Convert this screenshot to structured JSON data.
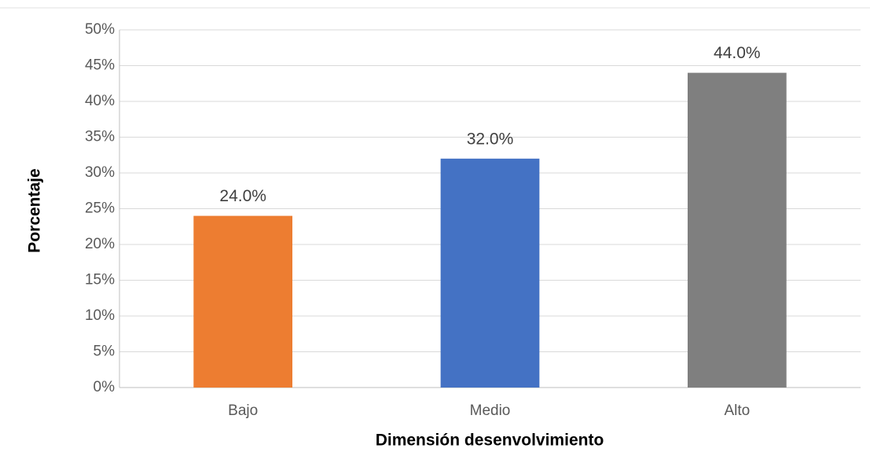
{
  "chart_data": {
    "type": "bar",
    "x_label": "Dimensión desenvolvimiento",
    "y_label": "Porcentaje",
    "categories": [
      "Bajo",
      "Medio",
      "Alto"
    ],
    "values": [
      24.0,
      32.0,
      44.0
    ],
    "value_labels": [
      "24.0%",
      "32.0%",
      "44.0%"
    ],
    "colors": [
      "#ed7d31",
      "#4472c4",
      "#7f7f7f"
    ],
    "ylim": [
      0,
      50
    ],
    "yticks": [
      {
        "value": 0,
        "label": "0%"
      },
      {
        "value": 5,
        "label": "5%"
      },
      {
        "value": 10,
        "label": "10%"
      },
      {
        "value": 15,
        "label": "15%"
      },
      {
        "value": 20,
        "label": "20%"
      },
      {
        "value": 25,
        "label": "25%"
      },
      {
        "value": 30,
        "label": "30%"
      },
      {
        "value": 35,
        "label": "35%"
      },
      {
        "value": 40,
        "label": "40%"
      },
      {
        "value": 45,
        "label": "45%"
      },
      {
        "value": 50,
        "label": "50%"
      }
    ],
    "grid": true
  }
}
